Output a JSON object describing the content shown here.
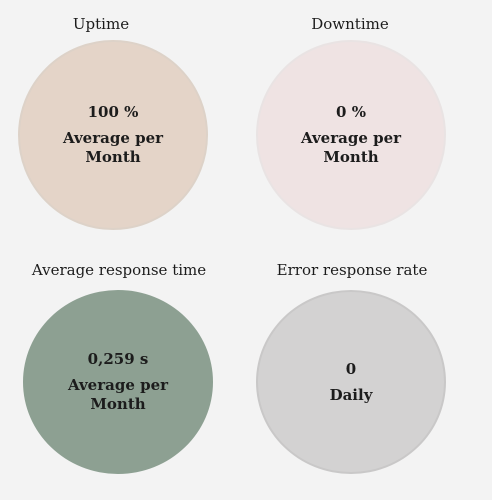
{
  "colors": {
    "background": "#f3f3f3",
    "uptime": "#e4d4c8",
    "downtime": "#efe3e3",
    "response_time": "#8da092",
    "error_rate": "#d3d2d2"
  },
  "stats": [
    {
      "title": "Uptime",
      "value": "100 %",
      "caption": "Average per Month",
      "color": "#e4d4c8"
    },
    {
      "title": "Downtime",
      "value": "0 %",
      "caption": "Average per Month",
      "color": "#efe3e3"
    },
    {
      "title": "Average response time",
      "value": "0,259 s",
      "caption": "Average per Month",
      "color": "#8da092"
    },
    {
      "title": "Error response rate",
      "value": "0",
      "caption": "Daily",
      "color": "#d3d2d2"
    }
  ]
}
